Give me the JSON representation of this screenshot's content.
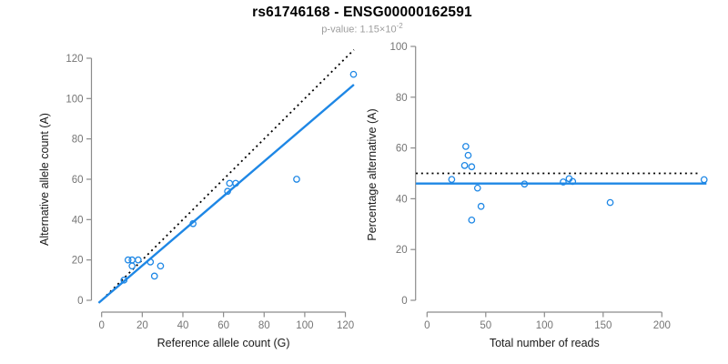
{
  "header": {
    "title": "rs61746168 - ENSG00000162591",
    "subtitle": {
      "base": "p-value: 1.15×10",
      "exponent": "-2"
    }
  },
  "colors": {
    "accent_blue": "#1e87e5",
    "identity_black": "#000000",
    "axis_gray": "#8c8c8c",
    "tick_label_gray": "#757575",
    "axis_title_color": "#1a1a1a"
  },
  "chart_data": [
    {
      "type": "scatter",
      "panel": "left",
      "xlabel": "Reference allele count (G)",
      "ylabel": "Alternative allele count (A)",
      "xticks": [
        0,
        20,
        40,
        60,
        80,
        100,
        120
      ],
      "yticks": [
        0,
        20,
        40,
        60,
        80,
        100,
        120
      ],
      "xlim": [
        -5,
        129
      ],
      "ylim": [
        -5,
        124
      ],
      "grid": false,
      "marker": "open-circle",
      "points": [
        [
          13,
          20
        ],
        [
          15,
          20
        ],
        [
          18,
          20
        ],
        [
          15,
          17
        ],
        [
          11,
          10
        ],
        [
          24,
          19
        ],
        [
          26,
          12
        ],
        [
          29,
          17
        ],
        [
          45,
          38
        ],
        [
          62,
          54
        ],
        [
          63,
          58
        ],
        [
          66,
          58
        ],
        [
          96,
          60
        ],
        [
          124,
          112
        ]
      ],
      "lines": [
        {
          "name": "identity-line",
          "style": "dotted",
          "color": "identity_black",
          "from": [
            0.5,
            0.5
          ],
          "to": [
            124.2,
            124.2
          ]
        },
        {
          "name": "fit-line",
          "style": "solid",
          "color": "accent_blue",
          "from": [
            -1.5,
            -1.3
          ],
          "to": [
            124.2,
            106.9
          ]
        }
      ]
    },
    {
      "type": "scatter",
      "panel": "right",
      "xlabel": "Total number of reads",
      "ylabel": "Percentage alternative (A)",
      "xticks": [
        0,
        50,
        100,
        150,
        200
      ],
      "yticks": [
        0,
        20,
        40,
        60,
        80,
        100
      ],
      "xlim": [
        -9.5,
        245
      ],
      "ylim": [
        -4,
        104
      ],
      "grid": false,
      "marker": "open-circle",
      "points": [
        [
          33,
          60.6
        ],
        [
          35,
          57.1
        ],
        [
          32,
          53.1
        ],
        [
          38,
          52.6
        ],
        [
          21,
          47.6
        ],
        [
          43,
          44.2
        ],
        [
          38,
          31.6
        ],
        [
          46,
          37.0
        ],
        [
          83,
          45.8
        ],
        [
          116,
          46.6
        ],
        [
          121,
          47.9
        ],
        [
          124,
          46.8
        ],
        [
          156,
          38.5
        ],
        [
          236,
          47.5
        ]
      ],
      "lines": [
        {
          "name": "expected-50pct-line",
          "style": "dotted",
          "color": "identity_black",
          "y": 50,
          "x_from": -9.5,
          "x_to": 233
        },
        {
          "name": "fit-line",
          "style": "solid",
          "color": "accent_blue",
          "y": 46,
          "x_from": -9.5,
          "x_to": 238
        }
      ]
    }
  ]
}
